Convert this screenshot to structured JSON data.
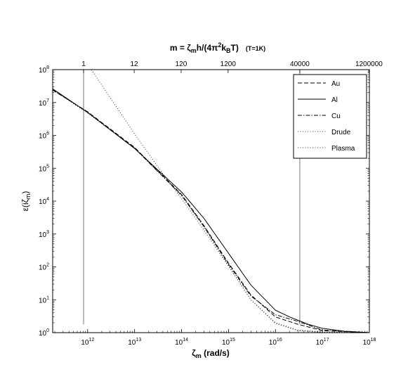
{
  "chart_data": {
    "type": "line",
    "top_title": {
      "base": "m = ζ",
      "sub1": "m",
      "mid1": "h/(4π",
      "sup1": "2",
      "mid2": "k",
      "sub2": "B",
      "end": "T)",
      "note": "(T=1K)"
    },
    "xlabel": {
      "base": "ζ",
      "sub": "m",
      "rest": " (rad/s)"
    },
    "ylabel": {
      "base": "ε(iζ",
      "sub": "m",
      "rest": ")"
    },
    "x_scale": "log",
    "y_scale": "log",
    "xlim": [
      180000000000.0,
      1e+18
    ],
    "ylim": [
      1,
      100000000.0
    ],
    "x_ticks": [
      {
        "value": 1000000000000.0,
        "base": "10",
        "exp": "12"
      },
      {
        "value": 10000000000000.0,
        "base": "10",
        "exp": "13"
      },
      {
        "value": 100000000000000.0,
        "base": "10",
        "exp": "14"
      },
      {
        "value": 1000000000000000.0,
        "base": "10",
        "exp": "15"
      },
      {
        "value": 1e+16,
        "base": "10",
        "exp": "16"
      },
      {
        "value": 1e+17,
        "base": "10",
        "exp": "17"
      },
      {
        "value": 1e+18,
        "base": "10",
        "exp": "18"
      }
    ],
    "y_ticks": [
      {
        "value": 1,
        "base": "10",
        "exp": "0"
      },
      {
        "value": 10,
        "base": "10",
        "exp": "1"
      },
      {
        "value": 100,
        "base": "10",
        "exp": "2"
      },
      {
        "value": 1000,
        "base": "10",
        "exp": "3"
      },
      {
        "value": 10000,
        "base": "10",
        "exp": "4"
      },
      {
        "value": 100000,
        "base": "10",
        "exp": "5"
      },
      {
        "value": 1000000,
        "base": "10",
        "exp": "6"
      },
      {
        "value": 10000000,
        "base": "10",
        "exp": "7"
      },
      {
        "value": 100000000,
        "base": "10",
        "exp": "8"
      }
    ],
    "top_ticks": [
      {
        "value": 820000000000.0,
        "label": "1"
      },
      {
        "value": 9800000000000.0,
        "label": "12"
      },
      {
        "value": 98000000000000.0,
        "label": "120"
      },
      {
        "value": 980000000000000.0,
        "label": "1200"
      },
      {
        "value": 3.3e+16,
        "label": "40000"
      },
      {
        "value": 9.8e+17,
        "label": "1200000"
      }
    ],
    "vertical_lines": [
      {
        "x": 820000000000.0,
        "y_range": [
          1.8,
          100000000.0
        ]
      },
      {
        "x": 3.3e+16,
        "y_range": [
          1.8,
          100000000.0
        ]
      }
    ],
    "series": [
      {
        "name": "Au",
        "style": "dashed",
        "points": [
          [
            180000000000.0,
            24000000.0
          ],
          [
            1000000000000.0,
            5200000.0
          ],
          [
            10000000000000.0,
            430000.0
          ],
          [
            100000000000000.0,
            16000.0
          ],
          [
            300000000000000.0,
            1800
          ],
          [
            1000000000000000.0,
            130
          ],
          [
            3000000000000000.0,
            14
          ],
          [
            1e+16,
            3.0
          ],
          [
            3e+16,
            1.8
          ],
          [
            1e+17,
            1.15
          ],
          [
            1e+18,
            1.0
          ]
        ]
      },
      {
        "name": "Al",
        "style": "solid",
        "points": [
          [
            180000000000.0,
            26000000.0
          ],
          [
            1000000000000.0,
            5000000.0
          ],
          [
            10000000000000.0,
            400000.0
          ],
          [
            100000000000000.0,
            19000.0
          ],
          [
            300000000000000.0,
            3000
          ],
          [
            1000000000000000.0,
            260
          ],
          [
            3000000000000000.0,
            28
          ],
          [
            1e+16,
            4.8
          ],
          [
            2e+16,
            3.0
          ],
          [
            5e+16,
            1.8
          ],
          [
            1e+17,
            1.35
          ],
          [
            3e+17,
            1.1
          ],
          [
            1e+18,
            1.0
          ]
        ]
      },
      {
        "name": "Cu",
        "style": "dashdot",
        "points": [
          [
            180000000000.0,
            25000000.0
          ],
          [
            1000000000000.0,
            5000000.0
          ],
          [
            10000000000000.0,
            410000.0
          ],
          [
            100000000000000.0,
            15000.0
          ],
          [
            300000000000000.0,
            1700
          ],
          [
            1000000000000000.0,
            120
          ],
          [
            3000000000000000.0,
            13
          ],
          [
            1e+16,
            3.5
          ],
          [
            3e+16,
            2.2
          ],
          [
            1e+17,
            1.2
          ],
          [
            1e+18,
            1.0
          ]
        ]
      },
      {
        "name": "Drude",
        "style": "dotted",
        "points": [
          [
            180000000000.0,
            24000000.0
          ],
          [
            1000000000000.0,
            4800000.0
          ],
          [
            10000000000000.0,
            400000.0
          ],
          [
            100000000000000.0,
            15000.0
          ],
          [
            300000000000000.0,
            1600
          ],
          [
            1000000000000000.0,
            110
          ],
          [
            3000000000000000.0,
            10
          ],
          [
            1e+16,
            2.0
          ],
          [
            3e+16,
            1.2
          ],
          [
            1e+17,
            1.05
          ],
          [
            1e+18,
            1.0
          ]
        ]
      },
      {
        "name": "Plasma",
        "style": "dotted",
        "points": [
          [
            1200000000000.0,
            100000000.0
          ],
          [
            10000000000000.0,
            1100000.0
          ],
          [
            30000000000000.0,
            120000.0
          ],
          [
            100000000000000.0,
            12000.0
          ],
          [
            300000000000000.0,
            1300
          ],
          [
            1000000000000000.0,
            105
          ],
          [
            3000000000000000.0,
            10
          ],
          [
            1e+16,
            1.9
          ],
          [
            3e+16,
            1.15
          ],
          [
            1e+17,
            1.02
          ],
          [
            1e+18,
            1.0
          ]
        ]
      }
    ],
    "legend_position": "top-right",
    "grid": false
  }
}
